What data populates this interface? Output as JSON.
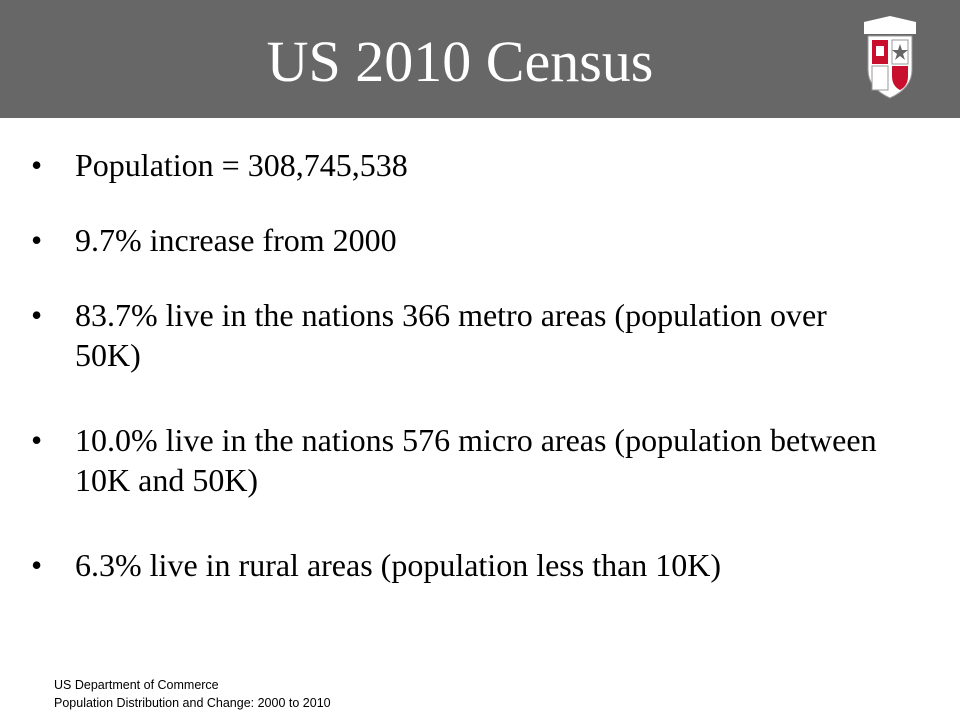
{
  "header": {
    "title": "US 2010 Census"
  },
  "bullets": [
    "Population = 308,745,538",
    "9.7% increase from 2000",
    "83.7% live in the nations 366 metro areas (population over 50K)",
    "10.0% live in the nations 576 micro areas (population between 10K and 50K)",
    "6.3% live in rural areas (population less than 10K)"
  ],
  "footer": {
    "source": "US Department of Commerce",
    "citation": "Population Distribution and Change: 2000 to 2010"
  }
}
